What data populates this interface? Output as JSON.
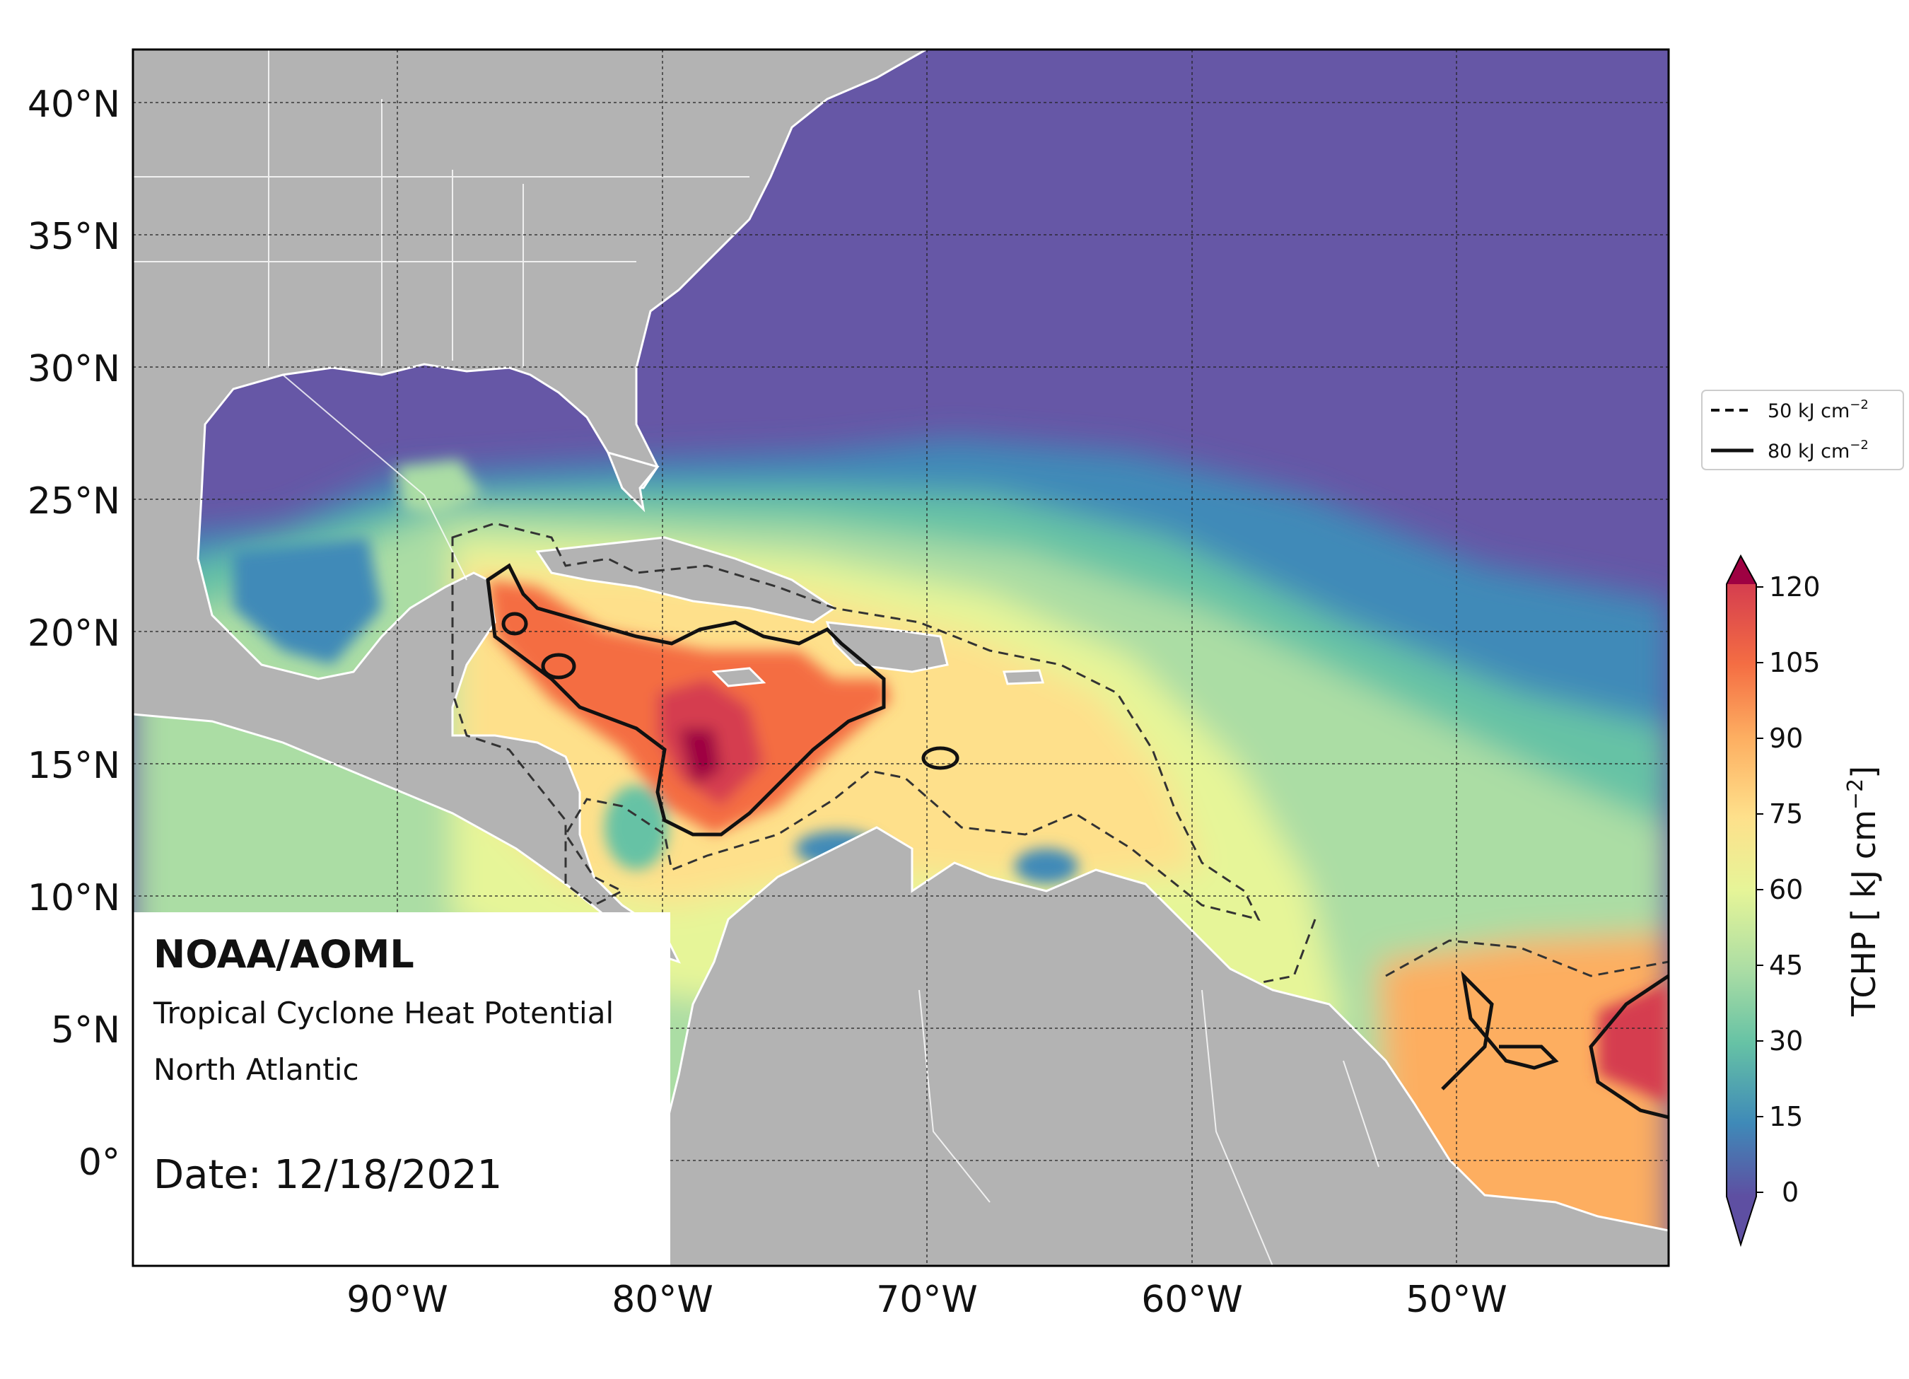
{
  "map": {
    "agency": "NOAA/AOML",
    "product": "Tropical Cyclone Heat Potential",
    "region": "North Atlantic",
    "date_label": "Date: 12/18/2021",
    "lon_ticks": [
      "90°W",
      "80°W",
      "70°W",
      "60°W",
      "50°W"
    ],
    "lat_ticks": [
      "40°N",
      "35°N",
      "30°N",
      "25°N",
      "20°N",
      "15°N",
      "10°N",
      "5°N",
      "0°"
    ],
    "extent": {
      "lon_min": -100,
      "lon_max": -42,
      "lat_min": -4,
      "lat_max": 42
    },
    "grid": true,
    "land_color": "#b3b3b3",
    "ocean_low_color": "#6657a6"
  },
  "legend": {
    "position": "right",
    "items": [
      {
        "label": "50 kJ cm",
        "sup": "−2",
        "style": "dashed",
        "value": 50
      },
      {
        "label": "80 kJ cm",
        "sup": "−2",
        "style": "solid",
        "value": 80
      }
    ]
  },
  "colorbar": {
    "label": "TCHP [ kJ cm",
    "label_sup": "−2",
    "label_end": "]",
    "ticks": [
      "120",
      "105",
      "90",
      "75",
      "60",
      "45",
      "30",
      "15",
      "0"
    ],
    "min": 0,
    "max": 120,
    "extend": "both",
    "colors": [
      "#5e4fa2",
      "#3f8ab8",
      "#66c2a5",
      "#abdda4",
      "#e6f598",
      "#fee08b",
      "#fdae61",
      "#f46d43",
      "#d53e4f",
      "#9e0142"
    ]
  }
}
